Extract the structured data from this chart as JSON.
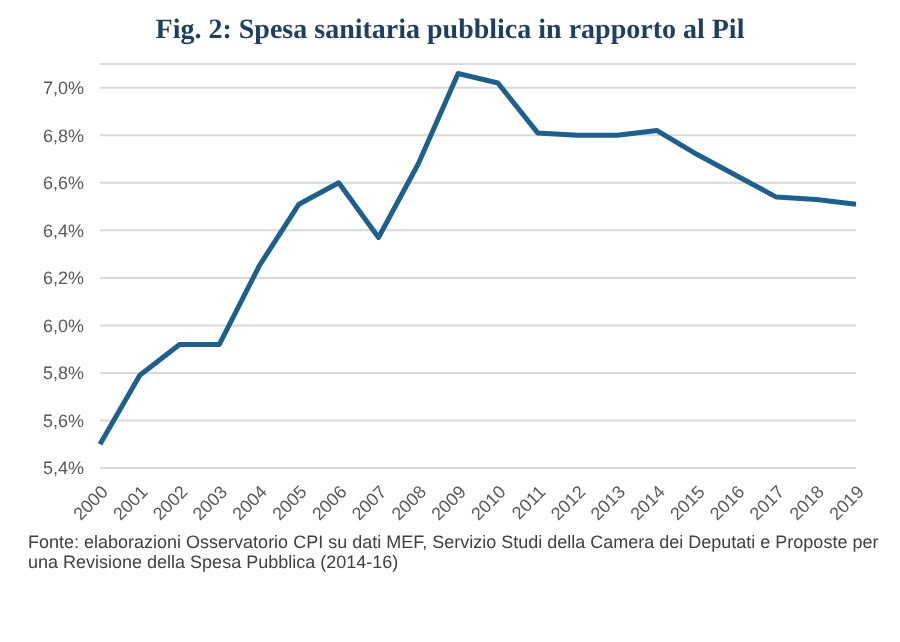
{
  "chart_data": {
    "type": "line",
    "title": "Fig. 2: Spesa sanitaria pubblica in rapporto al Pil",
    "categories": [
      "2000",
      "2001",
      "2002",
      "2003",
      "2004",
      "2005",
      "2006",
      "2007",
      "2008",
      "2009",
      "2010",
      "2011",
      "2012",
      "2013",
      "2014",
      "2015",
      "2016",
      "2017",
      "2018",
      "2019"
    ],
    "values": [
      5.5,
      5.79,
      5.92,
      5.92,
      6.25,
      6.51,
      6.6,
      6.37,
      6.68,
      7.06,
      7.02,
      6.81,
      6.8,
      6.8,
      6.82,
      6.72,
      6.63,
      6.54,
      6.53,
      6.51
    ],
    "color": "#1f5f8b",
    "ylim": [
      5.4,
      7.1
    ],
    "yticks": [
      {
        "value": 5.4,
        "label": "5,4%"
      },
      {
        "value": 5.6,
        "label": "5,6%"
      },
      {
        "value": 5.8,
        "label": "5,8%"
      },
      {
        "value": 6.0,
        "label": "6,0%"
      },
      {
        "value": 6.2,
        "label": "6,2%"
      },
      {
        "value": 6.4,
        "label": "6,4%"
      },
      {
        "value": 6.6,
        "label": "6,6%"
      },
      {
        "value": 6.8,
        "label": "6,8%"
      },
      {
        "value": 7.0,
        "label": "7,0%"
      }
    ],
    "grid": "y",
    "marker": "none",
    "line_style": "solid",
    "annotations": [
      "Fonte: elaborazioni Osservatorio CPI su dati MEF, Servizio Studi della Camera dei Deputati e Proposte per una Revisione della Spesa Pubblica (2014-16)"
    ]
  }
}
